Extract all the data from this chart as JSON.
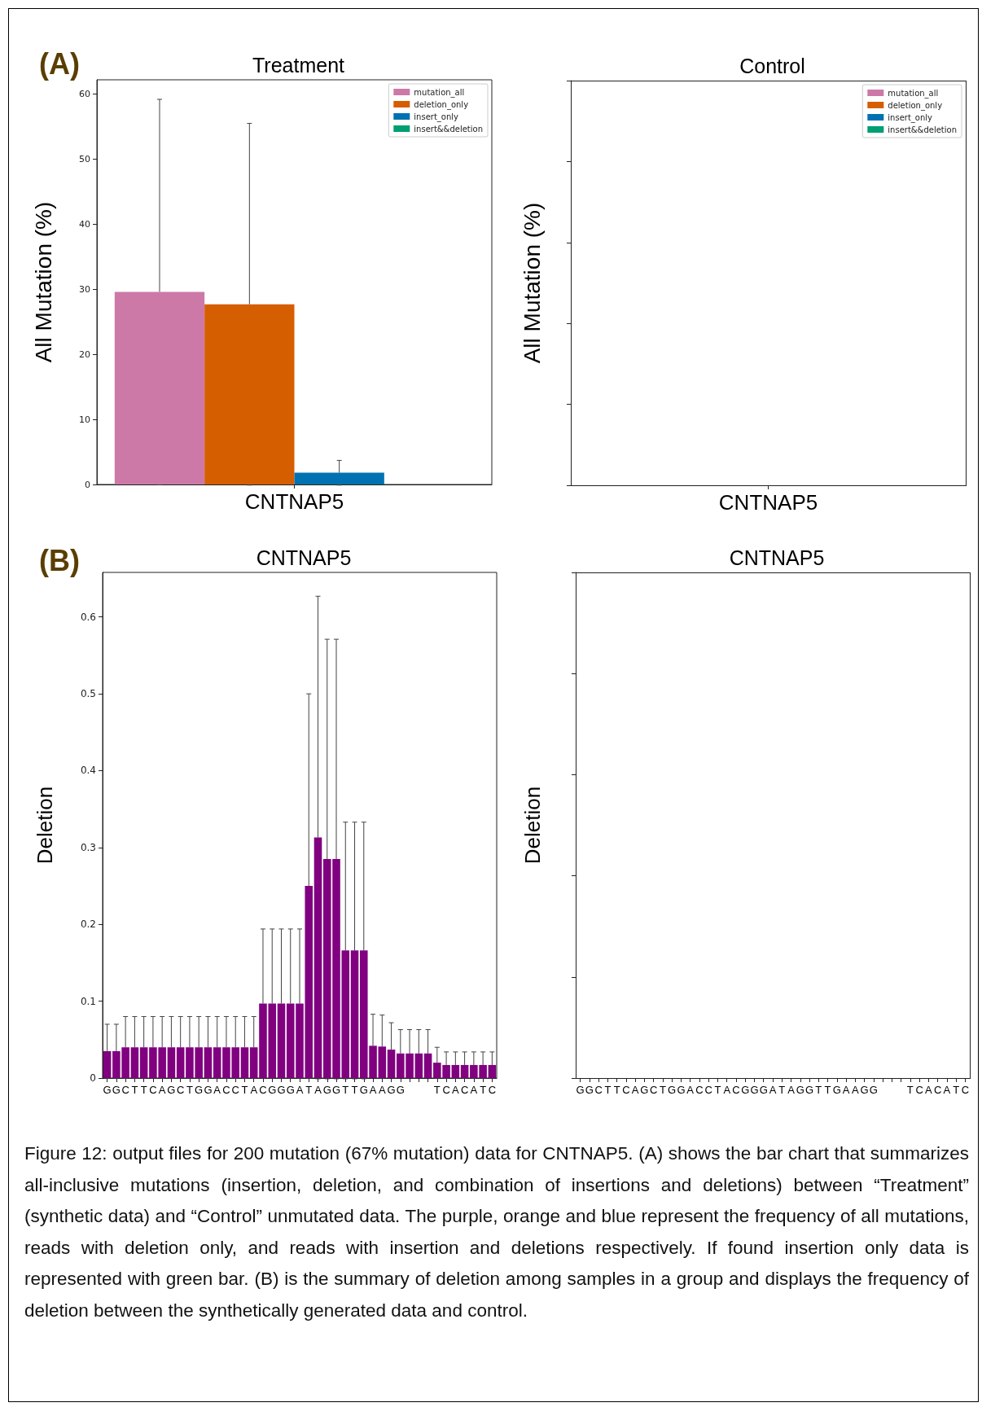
{
  "chart_data": [
    {
      "type": "bar",
      "title": "Treatment",
      "ylabel": "All Mutation (%)",
      "categories": [
        "CNTNAP5"
      ],
      "ylim": [
        0,
        62.2
      ],
      "yticks": [
        0,
        10,
        20,
        30,
        40,
        50,
        60
      ],
      "legend": "top right",
      "annotations": [
        "(A)"
      ],
      "series": [
        {
          "name": "mutation_all",
          "color": "#cc79a7",
          "values": [
            29.6
          ],
          "errors": [
            29.6
          ]
        },
        {
          "name": "deletion_only",
          "color": "#d55e00",
          "values": [
            27.7
          ],
          "errors": [
            27.8
          ]
        },
        {
          "name": "insert_only",
          "color": "#0072b2",
          "values": [
            1.8
          ],
          "errors": [
            1.9
          ]
        },
        {
          "name": "insert&&deletion",
          "color": "#009e73",
          "values": [
            0
          ]
        }
      ]
    },
    {
      "type": "other",
      "title": "Control",
      "ylabel": "All Mutation (%)",
      "categories": [
        "CNTNAP5"
      ],
      "legend": "top right",
      "series": [
        {
          "name": "mutation_all",
          "color": "#cc79a7",
          "values": [
            null
          ]
        },
        {
          "name": "deletion_only",
          "color": "#d55e00",
          "values": [
            null
          ]
        },
        {
          "name": "insert_only",
          "color": "#0072b2",
          "values": [
            null
          ]
        },
        {
          "name": "insert&&deletion",
          "color": "#009e73",
          "values": [
            null
          ]
        }
      ]
    },
    {
      "type": "bar",
      "title": "CNTNAP5",
      "ylabel": "Deletion",
      "categories": [
        "G",
        "G",
        "C",
        "T",
        "T",
        "C",
        "A",
        "G",
        "C",
        "T",
        "G",
        "G",
        "A",
        "C",
        "C",
        "T",
        "A",
        "C",
        "G",
        "G",
        "G",
        "A",
        "T",
        "A",
        "G",
        "G",
        "T",
        "T",
        "G",
        "A",
        "A",
        "G",
        "G",
        null,
        null,
        null,
        "T",
        "C",
        "A",
        "C",
        "A",
        "T",
        "C"
      ],
      "ylim": [
        0,
        0.658
      ],
      "yticks": [
        0,
        0.1,
        0.2,
        0.3,
        0.4,
        0.5,
        0.6
      ],
      "annotations": [
        "(B)",
        "Figure 12: output files for 200 mutation (67% mutation) data for CNTNAP5. (A) shows the bar chart that summarizes all-inclusive mutations (insertion, deletion, and combination of insertions and deletions) between “Treatment” (synthetic data) and “Control” unmutated data. The purple, orange and blue represent the frequency of all mutations, reads with deletion only, and reads with insertion and deletions respectively. If found insertion only data is represented with green bar. (B) is the summary of deletion among samples in a group and displays the frequency of deletion between the synthetically generated data and control."
      ],
      "color": "#800080",
      "values": [
        0.035,
        0.035,
        0.04,
        0.04,
        0.04,
        0.04,
        0.04,
        0.04,
        0.04,
        0.04,
        0.04,
        0.04,
        0.04,
        0.04,
        0.04,
        0.04,
        0.04,
        0.097,
        0.097,
        0.097,
        0.097,
        0.097,
        0.25,
        0.313,
        0.285,
        0.285,
        0.166,
        0.166,
        0.166,
        0.042,
        0.041,
        0.037,
        0.032,
        0.032,
        0.032,
        0.032,
        0.02,
        0.017,
        0.017,
        0.017,
        0.017,
        0.017,
        0.017
      ],
      "errors": [
        0.035,
        0.035,
        0.04,
        0.04,
        0.04,
        0.04,
        0.04,
        0.04,
        0.04,
        0.04,
        0.04,
        0.04,
        0.04,
        0.04,
        0.04,
        0.04,
        0.04,
        0.097,
        0.097,
        0.097,
        0.097,
        0.097,
        0.25,
        0.314,
        0.286,
        0.286,
        0.167,
        0.167,
        0.167,
        0.041,
        0.041,
        0.035,
        0.031,
        0.031,
        0.031,
        0.031,
        0.02,
        0.017,
        0.017,
        0.017,
        0.017,
        0.017,
        0.017
      ]
    },
    {
      "type": "other",
      "title": "CNTNAP5",
      "ylabel": "Deletion",
      "categories": [
        "G",
        "G",
        "C",
        "T",
        "T",
        "C",
        "A",
        "G",
        "C",
        "T",
        "G",
        "G",
        "A",
        "C",
        "C",
        "T",
        "A",
        "C",
        "G",
        "G",
        "G",
        "A",
        "T",
        "A",
        "G",
        "G",
        "T",
        "T",
        "G",
        "A",
        "A",
        "G",
        "G",
        null,
        null,
        null,
        "T",
        "C",
        "A",
        "C",
        "A",
        "T",
        "C"
      ]
    }
  ]
}
